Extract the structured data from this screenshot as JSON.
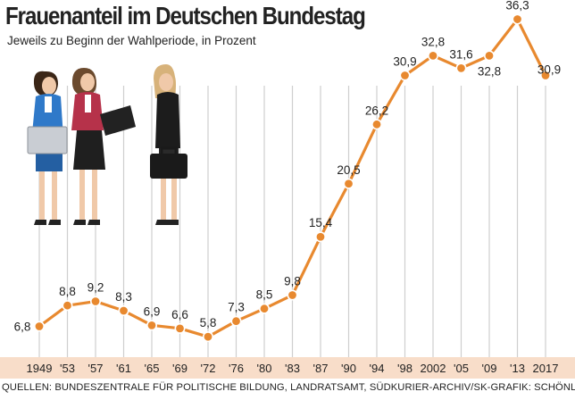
{
  "title": "Frauenanteil im Deutschen Bundestag",
  "subtitle": "Jeweils zu Beginn der Wahlperiode, in Prozent",
  "source": "QUELLEN: BUNDESZENTRALE FÜR POLITISCHE BILDUNG, LANDRATSAMT, SÜDKURIER-ARCHIV/SK-GRAFIK: SCHÖNLEIN",
  "colors": {
    "line": "#e8892f",
    "point_fill": "#e8892f",
    "point_stroke": "#ffffff",
    "grid": "#cfcfcf",
    "axis_band": "#f8ddc9",
    "text": "#222222"
  },
  "chart_data": {
    "type": "line",
    "title": "Frauenanteil im Deutschen Bundestag",
    "subtitle": "Jeweils zu Beginn der Wahlperiode, in Prozent",
    "categories": [
      "1949",
      "'53",
      "'57",
      "'61",
      "'65",
      "'69",
      "'72",
      "'76",
      "'80",
      "'83",
      "'87",
      "'90",
      "'94",
      "'98",
      "2002",
      "'05",
      "'09",
      "'13",
      "2017"
    ],
    "values": [
      6.8,
      8.8,
      9.2,
      8.3,
      6.9,
      6.6,
      5.8,
      7.3,
      8.5,
      9.8,
      15.4,
      20.5,
      26.2,
      30.9,
      32.8,
      31.6,
      32.8,
      36.3,
      30.9
    ],
    "labels": [
      "6,8",
      "8,8",
      "9,2",
      "8,3",
      "6,9",
      "6,6",
      "5,8",
      "7,3",
      "8,5",
      "9,8",
      "15,4",
      "20,5",
      "26,2",
      "30,9",
      "32,8",
      "31,6",
      "32,8",
      "36,3",
      "30,9"
    ],
    "label_below": [
      false,
      false,
      false,
      false,
      false,
      false,
      false,
      false,
      false,
      false,
      false,
      false,
      false,
      false,
      false,
      false,
      true,
      false,
      false
    ],
    "ylim": [
      0,
      40
    ],
    "grid": "vertical",
    "xlabel": "",
    "ylabel": ""
  },
  "illustration": {
    "figures": [
      "businesswoman-with-laptop",
      "businesswoman-with-tablet",
      "businesswoman-with-briefcase"
    ]
  }
}
